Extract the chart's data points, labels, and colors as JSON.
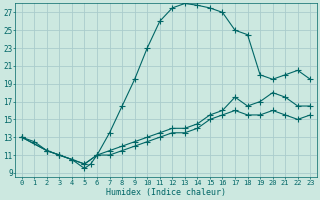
{
  "xlabel": "Humidex (Indice chaleur)",
  "bg_color": "#cce8e0",
  "grid_color": "#aacccc",
  "line_color": "#006666",
  "xlim": [
    -0.5,
    23.5
  ],
  "ylim": [
    8.5,
    28
  ],
  "xticks": [
    0,
    1,
    2,
    3,
    4,
    5,
    6,
    7,
    8,
    9,
    10,
    11,
    12,
    13,
    14,
    15,
    16,
    17,
    18,
    19,
    20,
    21,
    22,
    23
  ],
  "yticks": [
    9,
    11,
    13,
    15,
    17,
    19,
    21,
    23,
    25,
    27
  ],
  "line1_x": [
    0,
    1,
    2,
    3,
    4,
    5,
    5.5,
    6,
    7,
    8,
    9,
    10,
    11,
    12,
    13,
    14,
    15,
    16,
    17,
    18,
    19,
    20,
    21,
    22,
    23
  ],
  "line1_y": [
    13,
    12.5,
    11.5,
    11,
    10.5,
    9.5,
    10,
    11,
    13.5,
    16.5,
    19.5,
    23,
    26,
    27.5,
    28,
    27.8,
    27.5,
    27,
    25,
    24.5,
    20,
    19.5,
    20,
    20.5,
    19.5
  ],
  "line2_x": [
    0,
    2,
    3,
    4,
    5,
    6,
    7,
    8,
    9,
    10,
    11,
    12,
    13,
    14,
    15,
    16,
    17,
    18,
    19,
    20,
    21,
    22,
    23
  ],
  "line2_y": [
    13,
    11.5,
    11,
    10.5,
    10,
    11,
    11.5,
    12,
    12.5,
    13,
    13.5,
    14,
    14,
    14.5,
    15.5,
    16,
    17.5,
    16.5,
    17,
    18,
    17.5,
    16.5,
    16.5
  ],
  "line3_x": [
    0,
    2,
    3,
    4,
    5,
    6,
    7,
    8,
    9,
    10,
    11,
    12,
    13,
    14,
    15,
    16,
    17,
    18,
    19,
    20,
    21,
    22,
    23
  ],
  "line3_y": [
    13,
    11.5,
    11,
    10.5,
    10,
    11,
    11,
    11.5,
    12,
    12.5,
    13,
    13.5,
    13.5,
    14,
    15,
    15.5,
    16,
    15.5,
    15.5,
    16,
    15.5,
    15,
    15.5
  ]
}
